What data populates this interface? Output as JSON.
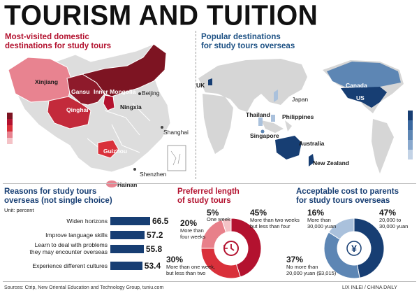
{
  "title": "TOURISM AND TUITION",
  "domestic": {
    "title_line1": "Most-visited domestic",
    "title_line2": "destinations for study tours",
    "places": [
      "Xinjiang",
      "Gansu",
      "Inner Mongolia",
      "Beijing",
      "Qinghai",
      "Ningxia",
      "Shanghai",
      "Guizhou",
      "Shenzhen",
      "Hainan"
    ]
  },
  "overseas": {
    "title_line1": "Popular destinations",
    "title_line2": "for study tours overseas",
    "places": [
      "UK",
      "Canada",
      "Japan",
      "US",
      "Thailand",
      "Philippines",
      "Singapore",
      "Australia",
      "New Zealand"
    ]
  },
  "chart_data": [
    {
      "type": "bar",
      "title_line1": "Reasons for study tours",
      "title_line2": "overseas (not single choice)",
      "unit": "Unit: percent",
      "categories": [
        "Widen horizons",
        "Improve language skills",
        "Learn to deal with problems they may encounter overseas",
        "Experience different cultures"
      ],
      "category_lines": [
        [
          "Widen horizons"
        ],
        [
          "Improve language skills"
        ],
        [
          "Learn to deal with problems",
          "they may encounter overseas"
        ],
        [
          "Experience different cultures"
        ]
      ],
      "values": [
        66.5,
        57.2,
        55.8,
        53.4
      ],
      "xlim": [
        0,
        70
      ]
    },
    {
      "type": "pie",
      "title_line1": "Preferred length",
      "title_line2": "of study tours",
      "slices": [
        {
          "label": "More than two weeks but less than four",
          "value": 45,
          "display": "45%",
          "lines": [
            "More than two weeks",
            "but less than four"
          ]
        },
        {
          "label": "More than one week, but less than two",
          "value": 30,
          "display": "30%",
          "lines": [
            "More than one week,",
            "but less than two"
          ]
        },
        {
          "label": "More than four weeks",
          "value": 20,
          "display": "20%",
          "lines": [
            "More than",
            "four weeks"
          ]
        },
        {
          "label": "One week",
          "value": 5,
          "display": "5%",
          "lines": [
            "One week"
          ]
        }
      ],
      "colors": [
        "#b3122f",
        "#d9303a",
        "#e8808a",
        "#f4c2c6"
      ]
    },
    {
      "type": "pie",
      "title_line1": "Acceptable cost to parents",
      "title_line2": "for study tours overseas",
      "slices": [
        {
          "label": "20,000 to 30,000 yuan",
          "value": 47,
          "display": "47%",
          "lines": [
            "20,000 to",
            "30,000 yuan"
          ]
        },
        {
          "label": "No more than 20,000 yuan ($3,015)",
          "value": 37,
          "display": "37%",
          "lines": [
            "No more than",
            "20,000 yuan ($3,015)"
          ]
        },
        {
          "label": "More than 30,000 yuan",
          "value": 16,
          "display": "16%",
          "lines": [
            "More than",
            "30,000 yuan"
          ]
        }
      ],
      "colors": [
        "#173e73",
        "#5d86b4",
        "#aac1dc"
      ]
    }
  ],
  "footer": {
    "sources": "Sources: Ctrip, New Oriental Education and Technology Group, tuniu.com",
    "credit": "LIX INLEI / CHINA DAILY"
  }
}
